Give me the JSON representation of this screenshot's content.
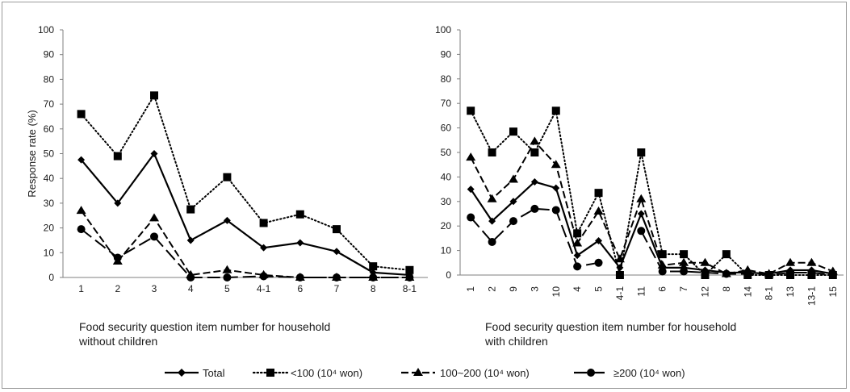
{
  "colors": {
    "series": "#000000",
    "axis": "#7f7f7f",
    "frame": "#9a9a9a"
  },
  "legend": {
    "items": [
      {
        "label": "Total",
        "marker": "diamond",
        "dash": "solid"
      },
      {
        "label": "<100 (10⁴ won)",
        "marker": "square",
        "dash": "dotted"
      },
      {
        "label": "100~200 (10⁴ won)",
        "marker": "triangle",
        "dash": "dashed"
      },
      {
        "label": "≥200 (10⁴ won)",
        "marker": "circle",
        "dash": "longdash"
      }
    ]
  },
  "chart_data": [
    {
      "type": "line",
      "title": "",
      "ylabel": "Response rate (%)",
      "xlabel_lines": [
        "Food security question item number for household",
        "without children"
      ],
      "ylim": [
        0,
        100
      ],
      "yticks": [
        0,
        10,
        20,
        30,
        40,
        50,
        60,
        70,
        80,
        90,
        100
      ],
      "categories": [
        "1",
        "2",
        "3",
        "4",
        "5",
        "4-1",
        "6",
        "7",
        "8",
        "8-1"
      ],
      "tick_rotation": 0,
      "series": [
        {
          "name": "Total",
          "values": [
            47.5,
            30,
            50,
            15,
            23,
            12,
            14,
            10.5,
            2,
            1
          ]
        },
        {
          "name": "<100 (10⁴ won)",
          "values": [
            66,
            49,
            73.5,
            27.5,
            40.5,
            22,
            25.5,
            19.5,
            4.5,
            3
          ]
        },
        {
          "name": "100~200 (10⁴ won)",
          "values": [
            27,
            6.5,
            24,
            1,
            3,
            1,
            0,
            0,
            0,
            0
          ]
        },
        {
          "name": "≥200 (10⁴ won)",
          "values": [
            19.5,
            8,
            16.5,
            0,
            0,
            0.5,
            0,
            0,
            0,
            0
          ]
        }
      ]
    },
    {
      "type": "line",
      "title": "",
      "ylabel": "",
      "xlabel_lines": [
        "Food security question item number for household",
        "with children"
      ],
      "ylim": [
        0,
        100
      ],
      "yticks": [
        0,
        10,
        20,
        30,
        40,
        50,
        60,
        70,
        80,
        90,
        100
      ],
      "categories": [
        "1",
        "2",
        "9",
        "3",
        "10",
        "4",
        "5",
        "4-1",
        "11",
        "6",
        "7",
        "12",
        "8",
        "14",
        "8-1",
        "13",
        "13-1",
        "15"
      ],
      "tick_rotation": -90,
      "series": [
        {
          "name": "Total",
          "values": [
            35,
            22,
            30,
            38,
            35.5,
            8,
            14,
            3,
            25,
            3,
            3,
            2,
            1,
            1,
            0.5,
            2,
            2,
            0.5
          ]
        },
        {
          "name": "<100 (10⁴ won)",
          "values": [
            67,
            50,
            58.5,
            50,
            67,
            17,
            33.5,
            0,
            50,
            8.5,
            8.5,
            0,
            8.5,
            0,
            0,
            0,
            0,
            0
          ]
        },
        {
          "name": "100~200 (10⁴ won)",
          "values": [
            48,
            31,
            39,
            54.5,
            45,
            13,
            26,
            6.5,
            31,
            4,
            5,
            5,
            0.5,
            2,
            0.5,
            5,
            5,
            1.5
          ]
        },
        {
          "name": "≥200 (10⁴ won)",
          "values": [
            23.5,
            13.5,
            22,
            27,
            26.5,
            3.5,
            5,
            null,
            18,
            1.5,
            1.5,
            1,
            0.5,
            0.5,
            0,
            1,
            1,
            0
          ]
        }
      ]
    }
  ]
}
